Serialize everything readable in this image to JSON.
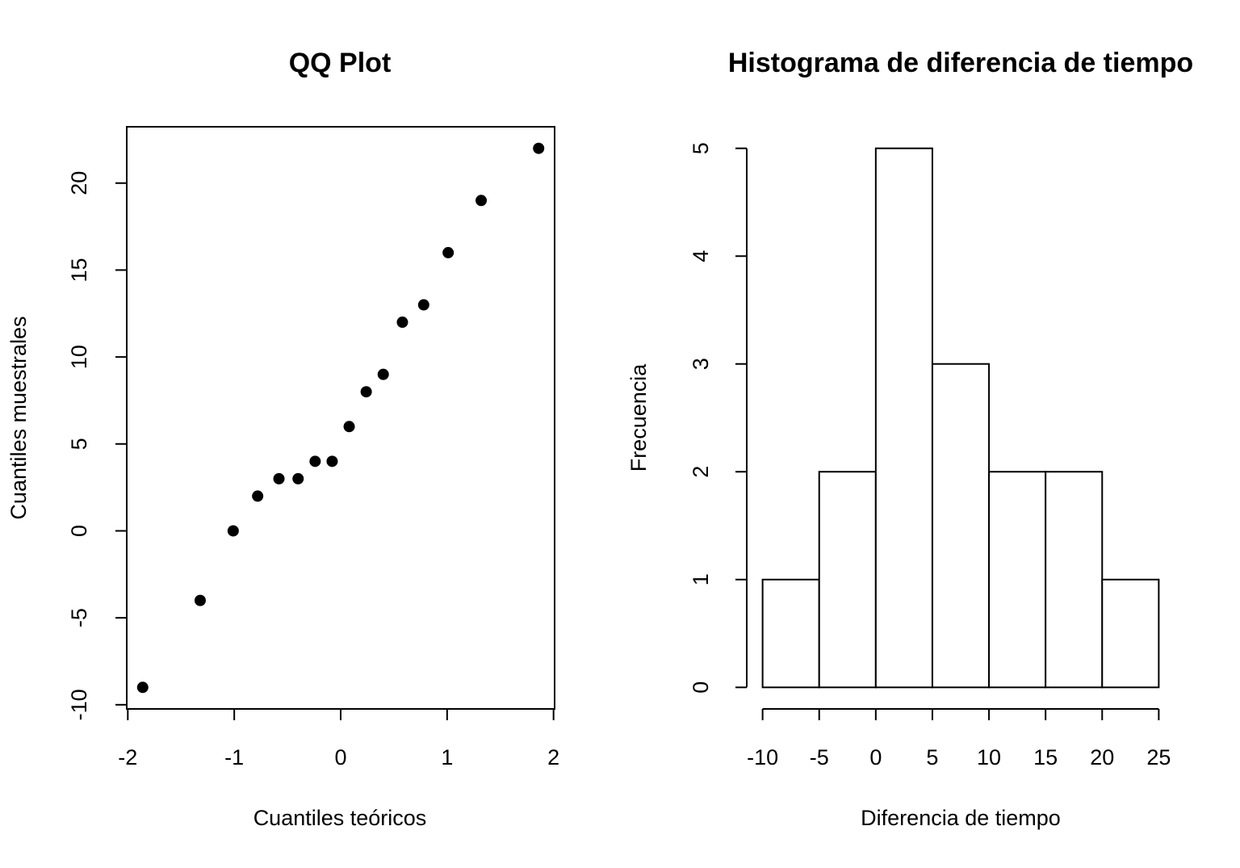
{
  "chart_data": [
    {
      "type": "scatter",
      "title": "QQ Plot",
      "x_label": "Cuantiles teóricos",
      "y_label": "Cuantiles muestrales",
      "x": [
        -1.86,
        -1.32,
        -1.01,
        -0.78,
        -0.58,
        -0.4,
        -0.24,
        -0.08,
        0.08,
        0.24,
        0.4,
        0.58,
        0.78,
        1.01,
        1.32,
        1.86
      ],
      "values": [
        -9,
        -4,
        0,
        2,
        3,
        3,
        4,
        4,
        6,
        8,
        9,
        12,
        13,
        16,
        19,
        22
      ],
      "color": "#000000",
      "xlim": [
        -2.01,
        2.01
      ],
      "xticks": [
        -2,
        -1,
        0,
        1,
        2
      ],
      "ylim": [
        -10.24,
        23.24
      ],
      "yticks": [
        -10,
        -5,
        0,
        5,
        10,
        15,
        20
      ]
    },
    {
      "type": "histogram",
      "title": "Histograma de diferencia de tiempo",
      "x_label": "Diferencia de tiempo",
      "y_label": "Frecuencia",
      "bins": [
        -10,
        -5,
        0,
        5,
        10,
        15,
        20,
        25
      ],
      "counts": [
        1,
        2,
        5,
        3,
        2,
        2,
        1
      ],
      "color": "#ffffff",
      "xlim": [
        -10,
        25
      ],
      "xticks": [
        -10,
        -5,
        0,
        5,
        10,
        15,
        20,
        25
      ],
      "ylim": [
        0,
        5
      ],
      "yticks": [
        0,
        1,
        2,
        3,
        4,
        5
      ]
    }
  ]
}
